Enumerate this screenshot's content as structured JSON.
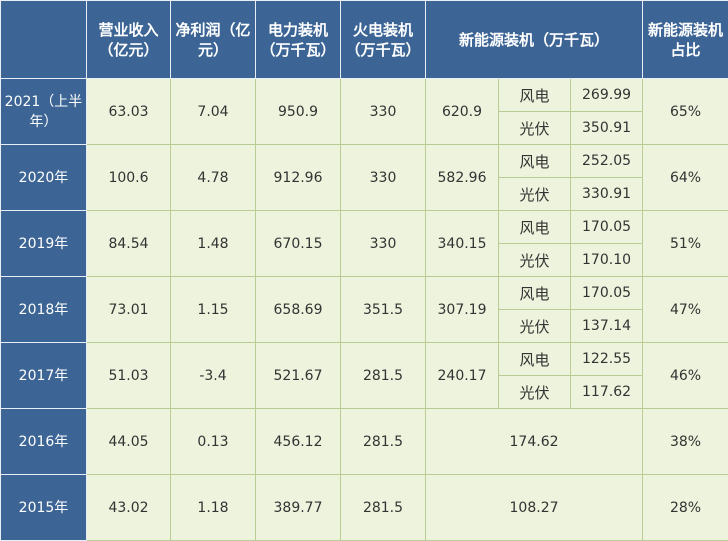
{
  "headers": [
    "",
    "营业收入（亿元）",
    "净利润（亿元）",
    "电力装机（万千瓦）",
    "火电装机（万千瓦）",
    "新能源装机（万千瓦）",
    "新能源装机占比"
  ],
  "rows": [
    {
      "year": "2021（上半年）",
      "revenue": "63.03",
      "profit": "7.04",
      "power": "950.9",
      "thermal": "330",
      "new_energy": "620.9",
      "wind_label": "风电",
      "wind": "269.99",
      "solar_label": "光伏",
      "solar": "350.91",
      "share": "65%"
    },
    {
      "year": "2020年",
      "revenue": "100.6",
      "profit": "4.78",
      "power": "912.96",
      "thermal": "330",
      "new_energy": "582.96",
      "wind_label": "风电",
      "wind": "252.05",
      "solar_label": "光伏",
      "solar": "330.91",
      "share": "64%"
    },
    {
      "year": "2019年",
      "revenue": "84.54",
      "profit": "1.48",
      "power": "670.15",
      "thermal": "330",
      "new_energy": "340.15",
      "wind_label": "风电",
      "wind": "170.05",
      "solar_label": "光伏",
      "solar": "170.10",
      "share": "51%"
    },
    {
      "year": "2018年",
      "revenue": "73.01",
      "profit": "1.15",
      "power": "658.69",
      "thermal": "351.5",
      "new_energy": "307.19",
      "wind_label": "风电",
      "wind": "170.05",
      "solar_label": "光伏",
      "solar": "137.14",
      "share": "47%"
    },
    {
      "year": "2017年",
      "revenue": "51.03",
      "profit": "-3.4",
      "power": "521.67",
      "thermal": "281.5",
      "new_energy": "240.17",
      "wind_label": "风电",
      "wind": "122.55",
      "solar_label": "光伏",
      "solar": "117.62",
      "share": "46%"
    },
    {
      "year": "2016年",
      "revenue": "44.05",
      "profit": "0.13",
      "power": "456.12",
      "thermal": "281.5",
      "new_energy": "174.62",
      "share": "38%"
    },
    {
      "year": "2015年",
      "revenue": "43.02",
      "profit": "1.18",
      "power": "389.77",
      "thermal": "281.5",
      "new_energy": "108.27",
      "share": "28%"
    }
  ],
  "colors": {
    "header_bg": "#3c6595",
    "cell_bg": "#eef3dd",
    "border": "#b9cc93"
  }
}
